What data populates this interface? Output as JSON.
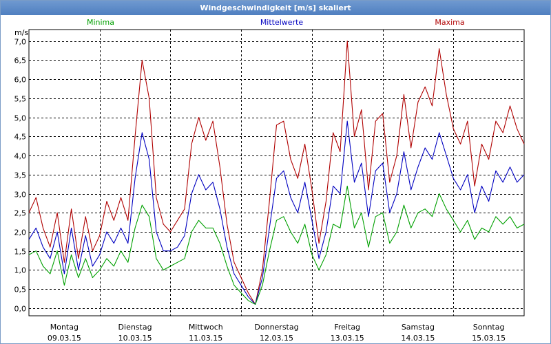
{
  "window": {
    "title": "Windgeschwindigkeit [m/s] skaliert"
  },
  "chart_data": {
    "type": "line",
    "title": "Windgeschwindigkeit [m/s] skaliert",
    "ylabel": "m/s",
    "ylim": [
      -0.2,
      7.3
    ],
    "yticks": [
      0,
      0.5,
      1,
      1.5,
      2,
      2.5,
      3,
      3.5,
      4,
      4.5,
      5,
      5.5,
      6,
      6.5,
      7
    ],
    "ytick_labels": [
      "0,0",
      "0,5",
      "1,0",
      "1,5",
      "2,0",
      "2,5",
      "3,0",
      "3,5",
      "4,0",
      "4,5",
      "5,0",
      "5,5",
      "6,0",
      "6,5",
      "7,0"
    ],
    "xlim": [
      0,
      7
    ],
    "grid": true,
    "x_labels": [
      {
        "day": "Montag",
        "date": "09.03.15"
      },
      {
        "day": "Dienstag",
        "date": "10.03.15"
      },
      {
        "day": "Mittwoch",
        "date": "11.03.15"
      },
      {
        "day": "Donnerstag",
        "date": "12.03.15"
      },
      {
        "day": "Freitag",
        "date": "13.03.15"
      },
      {
        "day": "Samstag",
        "date": "14.03.15"
      },
      {
        "day": "Sonntag",
        "date": "15.03.15"
      }
    ],
    "legend": [
      {
        "name": "Minima",
        "color": "#00a000",
        "position": "top-left"
      },
      {
        "name": "Mittelwerte",
        "color": "#0000c0",
        "position": "top-center"
      },
      {
        "name": "Maxima",
        "color": "#b00000",
        "position": "top-right"
      }
    ],
    "series": [
      {
        "name": "Maxima",
        "color": "#b00000",
        "x": [
          0,
          0.1,
          0.2,
          0.3,
          0.4,
          0.5,
          0.6,
          0.7,
          0.8,
          0.9,
          1.0,
          1.1,
          1.2,
          1.3,
          1.4,
          1.5,
          1.6,
          1.7,
          1.8,
          1.9,
          2.0,
          2.1,
          2.2,
          2.3,
          2.4,
          2.5,
          2.6,
          2.7,
          2.8,
          2.9,
          3.0,
          3.1,
          3.2,
          3.3,
          3.4,
          3.5,
          3.6,
          3.7,
          3.8,
          3.9,
          4.0,
          4.1,
          4.2,
          4.3,
          4.4,
          4.5,
          4.6,
          4.7,
          4.8,
          4.9,
          5.0,
          5.1,
          5.2,
          5.3,
          5.4,
          5.5,
          5.6,
          5.7,
          5.8,
          5.9,
          6.0,
          6.1,
          6.2,
          6.3,
          6.4,
          6.5,
          6.6,
          6.7,
          6.8,
          6.9,
          7.0
        ],
        "values": [
          2.5,
          2.9,
          2.1,
          1.6,
          2.5,
          1.2,
          2.6,
          1.3,
          2.4,
          1.5,
          1.9,
          2.8,
          2.3,
          2.9,
          2.3,
          4.5,
          6.5,
          5.5,
          2.9,
          2.2,
          2.0,
          2.3,
          2.6,
          4.3,
          5.0,
          4.4,
          4.9,
          3.7,
          2.2,
          1.2,
          0.8,
          0.4,
          0.1,
          1.0,
          2.8,
          4.8,
          4.9,
          3.9,
          3.4,
          4.3,
          3.1,
          1.7,
          2.8,
          4.6,
          4.1,
          7.0,
          4.5,
          5.2,
          3.1,
          4.9,
          5.1,
          3.3,
          4.0,
          5.6,
          4.2,
          5.4,
          5.8,
          5.3,
          6.8,
          5.6,
          4.7,
          4.3,
          4.9,
          3.2,
          4.3,
          3.9,
          4.9,
          4.6,
          5.3,
          4.7,
          4.3
        ]
      },
      {
        "name": "Mittelwerte",
        "color": "#0000c0",
        "x": [
          0,
          0.1,
          0.2,
          0.3,
          0.4,
          0.5,
          0.6,
          0.7,
          0.8,
          0.9,
          1.0,
          1.1,
          1.2,
          1.3,
          1.4,
          1.5,
          1.6,
          1.7,
          1.8,
          1.9,
          2.0,
          2.1,
          2.2,
          2.3,
          2.4,
          2.5,
          2.6,
          2.7,
          2.8,
          2.9,
          3.0,
          3.1,
          3.2,
          3.3,
          3.4,
          3.5,
          3.6,
          3.7,
          3.8,
          3.9,
          4.0,
          4.1,
          4.2,
          4.3,
          4.4,
          4.5,
          4.6,
          4.7,
          4.8,
          4.9,
          5.0,
          5.1,
          5.2,
          5.3,
          5.4,
          5.5,
          5.6,
          5.7,
          5.8,
          5.9,
          6.0,
          6.1,
          6.2,
          6.3,
          6.4,
          6.5,
          6.6,
          6.7,
          6.8,
          6.9,
          7.0
        ],
        "values": [
          1.8,
          2.1,
          1.6,
          1.3,
          2.0,
          0.9,
          2.1,
          1.0,
          1.9,
          1.1,
          1.4,
          2.0,
          1.7,
          2.1,
          1.7,
          3.4,
          4.6,
          3.9,
          2.0,
          1.5,
          1.5,
          1.6,
          1.9,
          3.0,
          3.5,
          3.1,
          3.3,
          2.6,
          1.6,
          0.9,
          0.6,
          0.3,
          0.1,
          0.8,
          2.1,
          3.4,
          3.6,
          2.9,
          2.5,
          3.3,
          2.3,
          1.3,
          2.0,
          3.2,
          3.0,
          4.9,
          3.3,
          3.8,
          2.4,
          3.6,
          3.8,
          2.5,
          3.0,
          4.1,
          3.1,
          3.7,
          4.2,
          3.9,
          4.6,
          4.0,
          3.4,
          3.1,
          3.5,
          2.5,
          3.2,
          2.8,
          3.6,
          3.3,
          3.7,
          3.3,
          3.5
        ]
      },
      {
        "name": "Minima",
        "color": "#00a000",
        "x": [
          0,
          0.1,
          0.2,
          0.3,
          0.4,
          0.5,
          0.6,
          0.7,
          0.8,
          0.9,
          1.0,
          1.1,
          1.2,
          1.3,
          1.4,
          1.5,
          1.6,
          1.7,
          1.8,
          1.9,
          2.0,
          2.1,
          2.2,
          2.3,
          2.4,
          2.5,
          2.6,
          2.7,
          2.8,
          2.9,
          3.0,
          3.1,
          3.2,
          3.3,
          3.4,
          3.5,
          3.6,
          3.7,
          3.8,
          3.9,
          4.0,
          4.1,
          4.2,
          4.3,
          4.4,
          4.5,
          4.6,
          4.7,
          4.8,
          4.9,
          5.0,
          5.1,
          5.2,
          5.3,
          5.4,
          5.5,
          5.6,
          5.7,
          5.8,
          5.9,
          6.0,
          6.1,
          6.2,
          6.3,
          6.4,
          6.5,
          6.6,
          6.7,
          6.8,
          6.9,
          7.0
        ],
        "values": [
          1.4,
          1.5,
          1.1,
          0.9,
          1.5,
          0.6,
          1.4,
          0.8,
          1.3,
          0.8,
          1.0,
          1.3,
          1.1,
          1.5,
          1.2,
          2.1,
          2.7,
          2.4,
          1.3,
          1.0,
          1.1,
          1.2,
          1.3,
          2.0,
          2.3,
          2.1,
          2.1,
          1.7,
          1.1,
          0.6,
          0.4,
          0.2,
          0.1,
          0.6,
          1.5,
          2.3,
          2.4,
          2.0,
          1.7,
          2.2,
          1.4,
          1.0,
          1.4,
          2.2,
          2.1,
          3.2,
          2.1,
          2.5,
          1.6,
          2.4,
          2.5,
          1.7,
          2.0,
          2.7,
          2.1,
          2.5,
          2.6,
          2.4,
          3.0,
          2.6,
          2.3,
          2.0,
          2.3,
          1.8,
          2.1,
          2.0,
          2.4,
          2.2,
          2.4,
          2.1,
          2.2
        ]
      }
    ]
  }
}
